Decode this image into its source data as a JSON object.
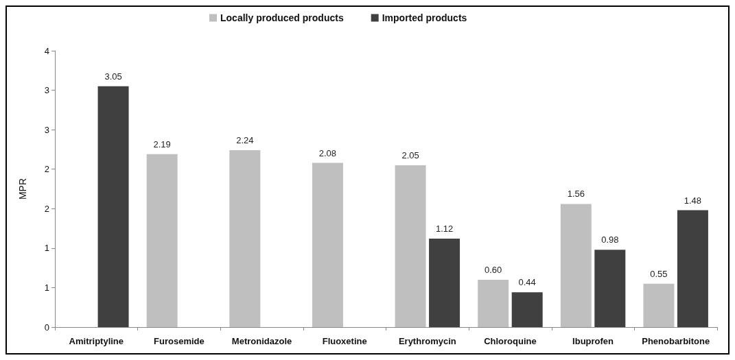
{
  "chart_data": {
    "type": "bar",
    "ylabel": "MPR",
    "categories": [
      "Amitriptyline",
      "Furosemide",
      "Metronidazole",
      "Fluoxetine",
      "Erythromycin",
      "Chloroquine",
      "Ibuprofen",
      "Phenobarbitone"
    ],
    "series": [
      {
        "name": "Locally produced products",
        "color": "#bfbfbf",
        "values": [
          null,
          2.19,
          2.24,
          2.08,
          2.05,
          0.6,
          1.56,
          0.55
        ],
        "value_labels": [
          null,
          "2.19",
          "2.24",
          "2.08",
          "2.05",
          "0.60",
          "1.56",
          "0.55"
        ]
      },
      {
        "name": "Imported products",
        "color": "#404040",
        "values": [
          3.05,
          null,
          null,
          null,
          1.12,
          0.44,
          0.98,
          1.48
        ],
        "value_labels": [
          "3.05",
          null,
          null,
          null,
          "1.12",
          "0.44",
          "0.98",
          "1.48"
        ]
      }
    ],
    "ylim": [
      0,
      3.5
    ],
    "yticks": [
      0,
      {
        "value": 0.5,
        "label": "1"
      },
      {
        "value": 1,
        "label": "1"
      },
      {
        "value": 1.5,
        "label": "2"
      },
      {
        "value": 2,
        "label": "2"
      },
      {
        "value": 2.5,
        "label": "3"
      },
      {
        "value": 3,
        "label": "3"
      },
      {
        "value": 3.5,
        "label": "4"
      }
    ],
    "legend": "top",
    "grid": false
  }
}
